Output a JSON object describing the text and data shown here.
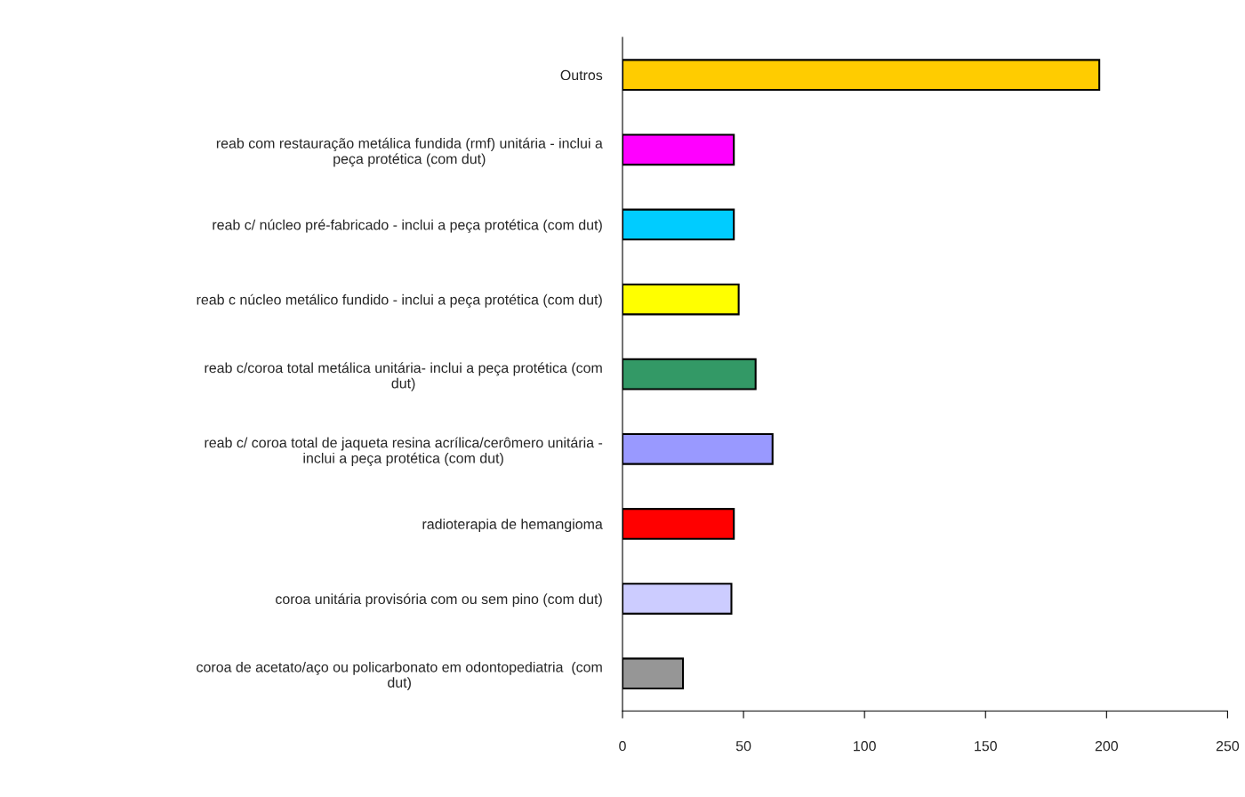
{
  "chart_data": {
    "type": "bar",
    "orientation": "horizontal",
    "categories": [
      "Outros",
      "reab com restauração metálica fundida (rmf) unitária - inclui a\npeça protética (com dut)",
      "reab c/ núcleo pré-fabricado - inclui a peça protética (com dut)",
      "reab c núcleo metálico fundido - inclui a peça protética (com dut)",
      "reab c/coroa total metálica unitária- inclui a peça protética (com\ndut)",
      "reab c/ coroa total de jaqueta resina acrílica/cerômero unitária -\ninclui a peça protética (com dut)",
      "radioterapia de hemangioma",
      "coroa unitária provisória com ou sem pino (com dut)",
      "coroa de acetato/aço ou policarbonato em odontopediatria  (com\ndut)"
    ],
    "values": [
      197,
      46,
      46,
      48,
      55,
      62,
      46,
      45,
      25
    ],
    "colors": [
      "#ffcc00",
      "#ff00ff",
      "#00ccff",
      "#ffff00",
      "#339966",
      "#9999ff",
      "#ff0000",
      "#ccccff",
      "#969696"
    ],
    "xlim": [
      0,
      250
    ],
    "xticks": [
      0,
      50,
      100,
      150,
      200,
      250
    ],
    "grid": false
  }
}
